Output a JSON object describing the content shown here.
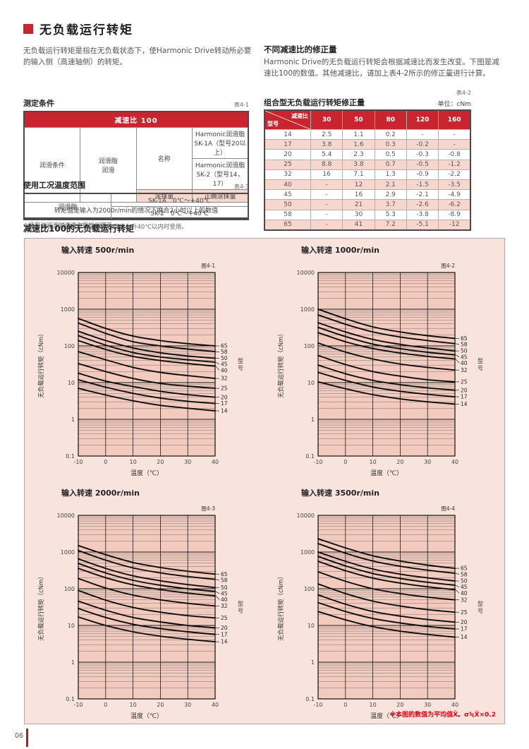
{
  "page": {
    "title": "无负载运行转矩",
    "page_number": "06",
    "intro": "无负载运行转矩是指在无负载状态下，使Harmonic Drive转动所必要的输入侧（高速轴侧）的转矩。",
    "correction_heading": "不同减速比的修正量",
    "correction_text": "Harmonic Drive的无负载运行转矩会根据减速比而发生改变。下图是减速比100的数值。其他减速比，请加上表4-2所示的修正量进行计算。",
    "charts_heading": "减速比100的无负载运行转矩",
    "charts_footnote": "※本图的数值为平均值X̄。σ≒X̄×0.2"
  },
  "measurement_table": {
    "heading": "测定条件",
    "ref": "表4-1",
    "header": "减速比 100",
    "condition_label": "润滑条件",
    "grease_label": "润滑脂\n润滑",
    "name_label": "名称",
    "name_row1": "Harmonic润滑脂 SK-1A（型号20以上）",
    "name_row2": "Harmonic润滑脂 SK-2（型号14，17）",
    "amount_label": "涂抹量",
    "amount_value": "正确涂抹量",
    "bottom_note": "转矩值是输入为2000r/min的情况下磨合2小时以上的数值",
    "footnote": "※使用油润滑时请咨询授权代理商。"
  },
  "temperature_table": {
    "heading": "使用工况温度范围",
    "ref": "表4-3",
    "row_label": "润滑脂",
    "rows": [
      "SK-1A　0℃～+40℃",
      "SK-2　0℃～+40℃"
    ],
    "note": "（注）对比工况温度，高温侧请在温度上升40℃以内时使用。"
  },
  "correction_table": {
    "heading": "组合型无负载运行转矩修正量",
    "ref": "表4-2",
    "unit": "单位：cNm",
    "diag_top": "减速比",
    "diag_bottom": "型号",
    "columns": [
      "30",
      "50",
      "80",
      "120",
      "160"
    ],
    "rows": [
      {
        "model": "14",
        "values": [
          "2.5",
          "1.1",
          "0.2",
          "-",
          "-"
        ]
      },
      {
        "model": "17",
        "values": [
          "3.8",
          "1.6",
          "0.3",
          "-0.2",
          "-"
        ]
      },
      {
        "model": "20",
        "values": [
          "5.4",
          "2.3",
          "0.5",
          "-0.3",
          "-0.8"
        ]
      },
      {
        "model": "25",
        "values": [
          "8.8",
          "3.8",
          "0.7",
          "-0.5",
          "-1.2"
        ]
      },
      {
        "model": "32",
        "values": [
          "16",
          "7.1",
          "1.3",
          "-0.9",
          "-2.2"
        ]
      },
      {
        "model": "40",
        "values": [
          "-",
          "12",
          "2.1",
          "-1.5",
          "-3.5"
        ]
      },
      {
        "model": "45",
        "values": [
          "-",
          "16",
          "2.9",
          "-2.1",
          "-4.9"
        ]
      },
      {
        "model": "50",
        "values": [
          "-",
          "21",
          "3.7",
          "-2.6",
          "-6.2"
        ]
      },
      {
        "model": "58",
        "values": [
          "-",
          "30",
          "5.3",
          "-3.8",
          "-8.9"
        ]
      },
      {
        "model": "65",
        "values": [
          "-",
          "41",
          "7.2",
          "-5.1",
          "-12"
        ]
      }
    ]
  },
  "chart_data": [
    {
      "type": "line",
      "title": "输入转速 500r/min",
      "fig_label": "图4-1",
      "xlabel": "温度（℃）",
      "ylabel": "无负载运行转矩（cNm）",
      "right_axis_label": "型号",
      "yscale": "log",
      "ylim": [
        0.1,
        10000
      ],
      "grid": true,
      "x": [
        -10,
        0,
        10,
        20,
        30,
        40
      ],
      "x_ticks": [
        "-10",
        "0",
        "10",
        "20",
        "30",
        "40"
      ],
      "y_ticks": [
        "10000",
        "1000",
        "100",
        "10",
        "1",
        "0.1"
      ],
      "series": [
        {
          "name": "65",
          "values": [
            560,
            300,
            185,
            140,
            115,
            100
          ]
        },
        {
          "name": "58",
          "values": [
            420,
            220,
            130,
            100,
            82,
            70
          ]
        },
        {
          "name": "50",
          "values": [
            250,
            140,
            88,
            65,
            53,
            46
          ]
        },
        {
          "name": "45",
          "values": [
            190,
            105,
            66,
            50,
            42,
            36
          ]
        },
        {
          "name": "40",
          "values": [
            140,
            80,
            52,
            40,
            33,
            28
          ]
        },
        {
          "name": "32",
          "values": [
            70,
            42,
            26,
            19,
            15.5,
            13
          ]
        },
        {
          "name": "25",
          "values": [
            33,
            20,
            13,
            9.5,
            8,
            7
          ]
        },
        {
          "name": "20",
          "values": [
            18,
            11,
            7.8,
            5.8,
            4.7,
            4
          ]
        },
        {
          "name": "17",
          "values": [
            12,
            7.5,
            5.1,
            3.8,
            3.1,
            2.7
          ]
        },
        {
          "name": "14",
          "values": [
            7,
            4.6,
            3.2,
            2.4,
            2.0,
            1.7
          ]
        }
      ]
    },
    {
      "type": "line",
      "title": "输入转速 1000r/min",
      "fig_label": "图4-2",
      "xlabel": "温度（℃）",
      "ylabel": "无负载运行转矩（cNm）",
      "right_axis_label": "型号",
      "yscale": "log",
      "ylim": [
        0.1,
        10000
      ],
      "grid": true,
      "x": [
        -10,
        0,
        10,
        20,
        30,
        40
      ],
      "x_ticks": [
        "-10",
        "0",
        "10",
        "20",
        "30",
        "40"
      ],
      "y_ticks": [
        "10000",
        "1000",
        "100",
        "10",
        "1",
        "0.1"
      ],
      "series": [
        {
          "name": "65",
          "values": [
            1000,
            550,
            330,
            240,
            190,
            160
          ]
        },
        {
          "name": "58",
          "values": [
            700,
            390,
            240,
            175,
            140,
            115
          ]
        },
        {
          "name": "50",
          "values": [
            430,
            240,
            150,
            110,
            88,
            73
          ]
        },
        {
          "name": "45",
          "values": [
            320,
            180,
            112,
            84,
            67,
            57
          ]
        },
        {
          "name": "40",
          "values": [
            230,
            130,
            85,
            64,
            52,
            44
          ]
        },
        {
          "name": "32",
          "values": [
            120,
            68,
            44,
            32,
            26,
            22
          ]
        },
        {
          "name": "25",
          "values": [
            55,
            31,
            20,
            15,
            12,
            10.5
          ]
        },
        {
          "name": "20",
          "values": [
            30,
            17.5,
            11.5,
            8.8,
            7.2,
            6.2
          ]
        },
        {
          "name": "17",
          "values": [
            19,
            11.5,
            7.6,
            5.8,
            4.8,
            4.1
          ]
        },
        {
          "name": "14",
          "values": [
            10.5,
            6.8,
            4.7,
            3.6,
            3.0,
            2.6
          ]
        }
      ]
    },
    {
      "type": "line",
      "title": "输入转速 2000r/min",
      "fig_label": "图4-3",
      "xlabel": "温度（℃）",
      "ylabel": "无负载运行转矩（cNm）",
      "right_axis_label": "型号",
      "yscale": "log",
      "ylim": [
        0.1,
        10000
      ],
      "grid": true,
      "x": [
        -10,
        0,
        10,
        20,
        30,
        40
      ],
      "x_ticks": [
        "-10",
        "0",
        "10",
        "20",
        "30",
        "40"
      ],
      "y_ticks": [
        "10000",
        "1000",
        "100",
        "10",
        "1",
        "0.1"
      ],
      "series": [
        {
          "name": "65",
          "values": [
            1500,
            850,
            520,
            380,
            300,
            250
          ]
        },
        {
          "name": "58",
          "values": [
            1100,
            600,
            370,
            270,
            215,
            180
          ]
        },
        {
          "name": "50",
          "values": [
            650,
            360,
            225,
            165,
            130,
            108
          ]
        },
        {
          "name": "45",
          "values": [
            490,
            270,
            170,
            125,
            100,
            84
          ]
        },
        {
          "name": "40",
          "values": [
            360,
            200,
            128,
            95,
            76,
            64
          ]
        },
        {
          "name": "32",
          "values": [
            190,
            105,
            67,
            50,
            40,
            34
          ]
        },
        {
          "name": "25",
          "values": [
            90,
            49,
            31,
            23,
            18.5,
            16
          ]
        },
        {
          "name": "20",
          "values": [
            46,
            26,
            16.5,
            12.5,
            10,
            8.6
          ]
        },
        {
          "name": "17",
          "values": [
            29,
            16.5,
            10.8,
            8.2,
            6.7,
            5.7
          ]
        },
        {
          "name": "14",
          "values": [
            17,
            10,
            6.7,
            5.1,
            4.2,
            3.6
          ]
        }
      ]
    },
    {
      "type": "line",
      "title": "输入转速 3500r/min",
      "fig_label": "图4-4",
      "xlabel": "温度（℃）",
      "ylabel": "无负载运行转矩（cNm）",
      "right_axis_label": "型号",
      "yscale": "log",
      "ylim": [
        0.1,
        10000
      ],
      "grid": true,
      "x": [
        -10,
        0,
        10,
        20,
        30,
        40
      ],
      "x_ticks": [
        "-10",
        "0",
        "10",
        "20",
        "30",
        "40"
      ],
      "y_ticks": [
        "10000",
        "1000",
        "100",
        "10",
        "1",
        "0.1"
      ],
      "series": [
        {
          "name": "65",
          "values": [
            2300,
            1300,
            790,
            570,
            440,
            360
          ]
        },
        {
          "name": "58",
          "values": [
            1700,
            930,
            570,
            410,
            320,
            265
          ]
        },
        {
          "name": "50",
          "values": [
            1000,
            560,
            345,
            250,
            198,
            163
          ]
        },
        {
          "name": "45",
          "values": [
            760,
            420,
            260,
            190,
            150,
            125
          ]
        },
        {
          "name": "40",
          "values": [
            560,
            310,
            195,
            143,
            113,
            94
          ]
        },
        {
          "name": "32",
          "values": [
            290,
            160,
            100,
            74,
            59,
            50
          ]
        },
        {
          "name": "25",
          "values": [
            135,
            74,
            46,
            34,
            27,
            23
          ]
        },
        {
          "name": "20",
          "values": [
            68,
            38,
            24,
            18,
            14.5,
            12.3
          ]
        },
        {
          "name": "17",
          "values": [
            42,
            24,
            15.5,
            11.7,
            9.4,
            8
          ]
        },
        {
          "name": "14",
          "values": [
            24,
            14.2,
            9.3,
            7.0,
            5.7,
            4.8
          ]
        }
      ]
    }
  ],
  "colors": {
    "accent_red": "#c9252e",
    "panel_pink": "#f9e4dd",
    "plot_pink": "#f2cabe",
    "row_pink": "#f7d6ce",
    "footnote_red": "#e50012",
    "curve_black": "#0d0d0d"
  }
}
